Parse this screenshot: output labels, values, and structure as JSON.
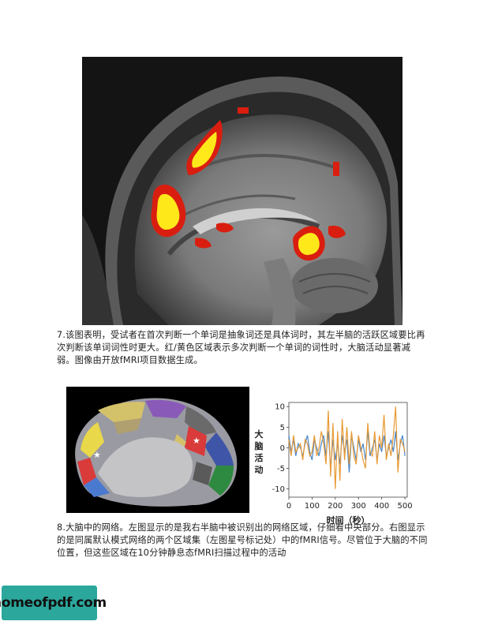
{
  "figure1": {
    "caption": "7.该图表明，受试者在首次判断一个单词是抽象词还是具体词时，其左半脑的活跃区域要比再次判断该单词词性时更大。红/黄色区域表示多次判断一个单词的词性时，大脑活动显著减弱。图像由开放fMRI项目数据生成。",
    "colors": {
      "activation_outer": "#d91e10",
      "activation_inner": "#ffe81a"
    }
  },
  "figure2": {
    "caption": "8.大脑中的网络。左图显示的是我右半脑中被识别出的网络区域，仔细看中央部分。右图显示的是同属默认模式网络的两个区域集（左图星号标记处）中的fMRI信号。尽管位于大脑的不同位置，但这些区域在10分钟静息态fMRI扫描过程中的活动",
    "brain_markers": [
      "star",
      "star"
    ],
    "chart_data": {
      "type": "line",
      "title": "",
      "xlabel": "时间（秒）",
      "ylabel": "大脑活动",
      "xlim": [
        0,
        510
      ],
      "ylim": [
        -12,
        11
      ],
      "xticks": [
        0,
        100,
        200,
        300,
        400,
        500
      ],
      "yticks": [
        10,
        5,
        0,
        -5,
        -10
      ],
      "series": [
        {
          "color": "#4a86c8",
          "x": [
            0,
            10,
            20,
            30,
            40,
            50,
            60,
            70,
            80,
            90,
            100,
            110,
            120,
            130,
            140,
            150,
            160,
            170,
            180,
            190,
            200,
            210,
            220,
            230,
            240,
            250,
            260,
            270,
            280,
            290,
            300,
            310,
            320,
            330,
            340,
            350,
            360,
            370,
            380,
            390,
            400,
            410,
            420,
            430,
            440,
            450,
            460,
            470,
            480,
            490,
            500
          ],
          "values": [
            3,
            -1,
            2,
            -2,
            1,
            0,
            -2,
            1,
            3,
            -1,
            -3,
            2,
            0,
            -2,
            1,
            3,
            -2,
            4,
            -5,
            2,
            -3,
            1,
            -4,
            3,
            -1,
            2,
            -6,
            3,
            0,
            -3,
            2,
            -1,
            1,
            -3,
            4,
            -2,
            0,
            2,
            -3,
            1,
            -1,
            3,
            -2,
            0,
            2,
            -1,
            4,
            -3,
            1,
            3,
            -2
          ]
        },
        {
          "color": "#e89a34",
          "x": [
            0,
            10,
            20,
            30,
            40,
            50,
            60,
            70,
            80,
            90,
            100,
            110,
            120,
            130,
            140,
            150,
            160,
            170,
            180,
            190,
            200,
            210,
            220,
            230,
            240,
            250,
            260,
            270,
            280,
            290,
            300,
            310,
            320,
            330,
            340,
            350,
            360,
            370,
            380,
            390,
            400,
            410,
            420,
            430,
            440,
            450,
            460,
            470,
            480,
            490,
            500
          ],
          "values": [
            2,
            -2,
            3,
            -1,
            0,
            1,
            -3,
            2,
            1,
            -2,
            -1,
            3,
            -2,
            0,
            4,
            1,
            -4,
            9,
            -7,
            6,
            -10,
            4,
            -8,
            7,
            -3,
            5,
            -4,
            4,
            -2,
            -4,
            3,
            0,
            -3,
            -5,
            6,
            -1,
            -2,
            4,
            -4,
            3,
            0,
            8,
            -3,
            1,
            -2,
            3,
            10,
            -6,
            2,
            1,
            -1
          ]
        }
      ]
    }
  },
  "watermark": {
    "text": "homeofpdf.com"
  }
}
